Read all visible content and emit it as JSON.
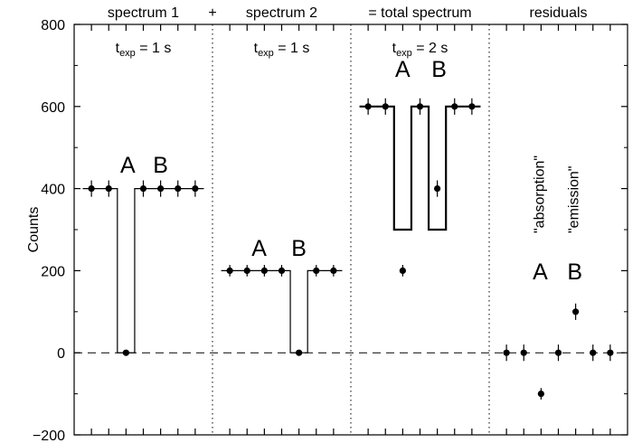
{
  "chart_data": {
    "type": "scatter",
    "ylabel": "Counts",
    "ylim": [
      -200,
      800
    ],
    "yticks": [
      -200,
      0,
      200,
      400,
      600,
      800
    ],
    "separators": [
      "+",
      "="
    ],
    "panels": [
      {
        "title": "spectrum 1",
        "exposure": {
          "prefix": "t",
          "sub": "exp",
          "value": " = 1 s"
        },
        "labels": [
          "A",
          "B"
        ],
        "points": [
          {
            "x": 1,
            "y": 400,
            "err": 20
          },
          {
            "x": 2,
            "y": 400,
            "err": 20
          },
          {
            "x": 3,
            "y": 0,
            "err": 0
          },
          {
            "x": 4,
            "y": 400,
            "err": 20
          },
          {
            "x": 5,
            "y": 400,
            "err": 20
          },
          {
            "x": 6,
            "y": 400,
            "err": 20
          },
          {
            "x": 7,
            "y": 400,
            "err": 20
          }
        ],
        "model_steps": [
          {
            "from": 0.5,
            "to": 2.5,
            "y": 400
          },
          {
            "from": 2.5,
            "to": 3.5,
            "y": 0
          },
          {
            "from": 3.5,
            "to": 7.5,
            "y": 400
          }
        ]
      },
      {
        "title": "spectrum 2",
        "exposure": {
          "prefix": "t",
          "sub": "exp",
          "value": " = 1 s"
        },
        "labels": [
          "A",
          "B"
        ],
        "points": [
          {
            "x": 1,
            "y": 200,
            "err": 14
          },
          {
            "x": 2,
            "y": 200,
            "err": 14
          },
          {
            "x": 3,
            "y": 200,
            "err": 14
          },
          {
            "x": 4,
            "y": 200,
            "err": 14
          },
          {
            "x": 5,
            "y": 0,
            "err": 0
          },
          {
            "x": 6,
            "y": 200,
            "err": 14
          },
          {
            "x": 7,
            "y": 200,
            "err": 14
          }
        ],
        "model_steps": [
          {
            "from": 0.5,
            "to": 4.5,
            "y": 200
          },
          {
            "from": 4.5,
            "to": 5.5,
            "y": 0
          },
          {
            "from": 5.5,
            "to": 7.5,
            "y": 200
          }
        ]
      },
      {
        "title": "= total spectrum",
        "exposure": {
          "prefix": "t",
          "sub": "exp",
          "value": " = 2 s"
        },
        "labels": [
          "A",
          "B"
        ],
        "points": [
          {
            "x": 1,
            "y": 600,
            "err": 20
          },
          {
            "x": 2,
            "y": 600,
            "err": 20
          },
          {
            "x": 3,
            "y": 200,
            "err": 14
          },
          {
            "x": 4,
            "y": 600,
            "err": 20
          },
          {
            "x": 5,
            "y": 400,
            "err": 20
          },
          {
            "x": 6,
            "y": 600,
            "err": 20
          },
          {
            "x": 7,
            "y": 600,
            "err": 20
          }
        ],
        "model_steps": [
          {
            "from": 0.5,
            "to": 2.5,
            "y": 600
          },
          {
            "from": 2.5,
            "to": 3.5,
            "y": 300
          },
          {
            "from": 3.5,
            "to": 4.5,
            "y": 600
          },
          {
            "from": 4.5,
            "to": 5.5,
            "y": 300
          },
          {
            "from": 5.5,
            "to": 7.5,
            "y": 600
          }
        ]
      },
      {
        "title": "residuals",
        "labels": [
          "A",
          "B"
        ],
        "rotated_labels": [
          "\"absorption\"",
          "\"emission\""
        ],
        "points": [
          {
            "x": 1,
            "y": 0,
            "err": 20
          },
          {
            "x": 2,
            "y": 0,
            "err": 20
          },
          {
            "x": 3,
            "y": -100,
            "err": 14
          },
          {
            "x": 4,
            "y": 0,
            "err": 20
          },
          {
            "x": 5,
            "y": 100,
            "err": 20
          },
          {
            "x": 6,
            "y": 0,
            "err": 20
          },
          {
            "x": 7,
            "y": 0,
            "err": 20
          }
        ]
      }
    ]
  }
}
